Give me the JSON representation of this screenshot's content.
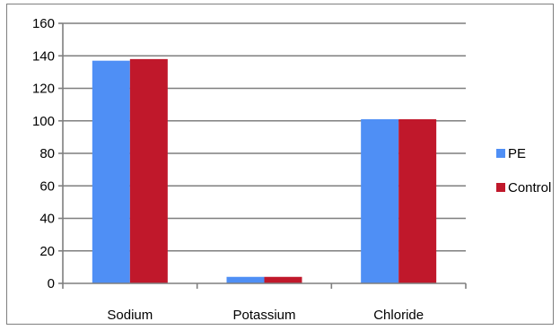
{
  "chart_data": {
    "type": "bar",
    "categories": [
      "Sodium",
      "Potassium",
      "Chloride"
    ],
    "series": [
      {
        "name": "PE",
        "values": [
          137,
          4,
          101
        ],
        "color": "#4F8FF5"
      },
      {
        "name": "Control",
        "values": [
          138,
          4,
          101
        ],
        "color": "#C0182B"
      }
    ],
    "title": "",
    "xlabel": "",
    "ylabel": "",
    "ylim": [
      0,
      160
    ],
    "yticks": [
      0,
      20,
      40,
      60,
      80,
      100,
      120,
      140,
      160
    ],
    "grid": true,
    "legend_position": "right"
  }
}
